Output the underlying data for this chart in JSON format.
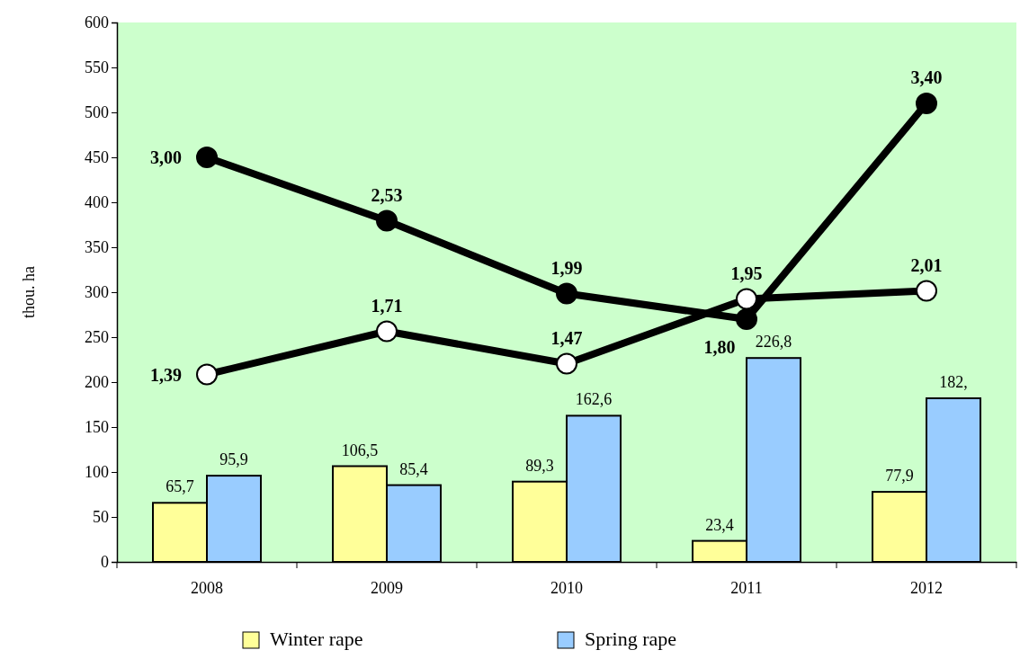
{
  "chart_data": {
    "type": "bar",
    "ylabel": "thou. ha",
    "categories": [
      "2008",
      "2009",
      "2010",
      "2011",
      "2012"
    ],
    "series": [
      {
        "name": "Winter rape",
        "color": "#ffff99",
        "values": [
          65.7,
          106.5,
          89.3,
          23.4,
          77.9
        ],
        "value_labels": [
          "65,7",
          "106,5",
          "89,3",
          "23,4",
          "77,9"
        ]
      },
      {
        "name": "Spring rape",
        "color": "#99ccff",
        "values": [
          95.9,
          85.4,
          162.6,
          226.8,
          182
        ],
        "value_labels": [
          "95,9",
          "85,4",
          "162,6",
          "226,8",
          "182,"
        ]
      },
      {
        "type": "line",
        "axis": "y2",
        "color": "#000000",
        "values": [
          3.0,
          2.53,
          1.99,
          1.8,
          3.4
        ],
        "value_labels": [
          "3,00",
          "2,53",
          "1,99",
          "1,80",
          "3,40"
        ]
      },
      {
        "type": "line",
        "axis": "y2",
        "color": "#ffffff",
        "values": [
          1.39,
          1.71,
          1.47,
          1.95,
          2.01
        ],
        "value_labels": [
          "1,39",
          "1,71",
          "1,47",
          "1,95",
          "2,01"
        ]
      }
    ],
    "ylim": [
      0,
      600
    ],
    "y2lim": [
      0,
      4
    ],
    "yticks": [
      0,
      50,
      100,
      150,
      200,
      250,
      300,
      350,
      400,
      450,
      500,
      550,
      600
    ],
    "marker": "circle",
    "legend": "bottom",
    "grid": false
  }
}
